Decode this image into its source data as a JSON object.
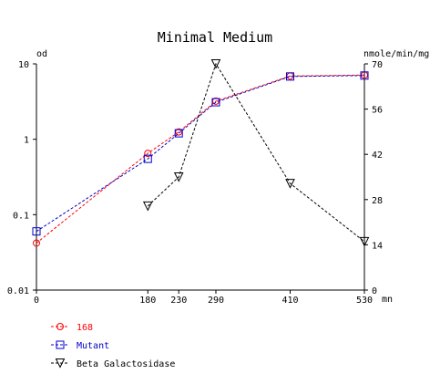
{
  "chart_data": {
    "type": "line",
    "title": "Minimal Medium",
    "xlabel_unit": "mn",
    "left_axis": {
      "label": "od",
      "scale": "log",
      "range": [
        0.01,
        10
      ],
      "ticks": [
        0.01,
        0.1,
        1,
        10
      ],
      "tick_labels": [
        "0.01",
        "0.1",
        "1",
        "10"
      ]
    },
    "right_axis": {
      "label": "nmole/min/mg",
      "scale": "linear",
      "range": [
        0,
        70
      ],
      "ticks": [
        0,
        14,
        28,
        42,
        56,
        70
      ],
      "tick_labels": [
        "0",
        "14",
        "28",
        "42",
        "56",
        "70"
      ]
    },
    "x_axis": {
      "range": [
        0,
        530
      ],
      "ticks": [
        0,
        180,
        230,
        290,
        410,
        530
      ],
      "tick_labels": [
        "0",
        "180",
        "230",
        "290",
        "410",
        "530"
      ]
    },
    "grid": false,
    "legend_position": "bottom-left",
    "series": [
      {
        "name": "168",
        "axis": "left",
        "color": "#ff0000",
        "marker": "circle",
        "x": [
          0,
          180,
          230,
          290,
          410,
          530
        ],
        "y": [
          0.042,
          0.65,
          1.25,
          3.2,
          6.9,
          7.1
        ]
      },
      {
        "name": "Mutant",
        "axis": "left",
        "color": "#0000cc",
        "marker": "square",
        "x": [
          0,
          180,
          230,
          290,
          410,
          530
        ],
        "y": [
          0.06,
          0.55,
          1.2,
          3.1,
          6.8,
          7.0
        ]
      },
      {
        "name": "Beta Galactosidase",
        "axis": "right",
        "color": "#000000",
        "marker": "triangle-down",
        "x": [
          180,
          230,
          290,
          410,
          530
        ],
        "y": [
          26,
          35,
          70,
          33,
          15
        ]
      }
    ]
  }
}
